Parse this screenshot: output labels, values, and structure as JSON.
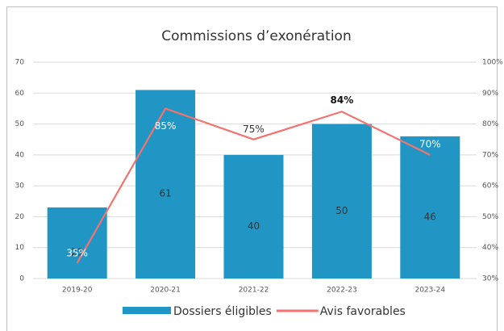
{
  "chart_data": {
    "type": "combo",
    "title": "Commissions d’exonération",
    "categories": [
      "2019-20",
      "2020-21",
      "2021-22",
      "2022-23",
      "2023-24"
    ],
    "series": [
      {
        "name": "Dossiers éligibles",
        "type": "bar",
        "color": "#2196c4",
        "values": [
          23,
          61,
          40,
          50,
          46
        ]
      },
      {
        "name": "Avis favorables",
        "type": "line",
        "axis": "y2",
        "color": "#f4736f",
        "values": [
          35,
          85,
          75,
          84,
          70
        ],
        "value_labels": [
          "35%",
          "85%",
          "75%",
          "84%",
          "70%"
        ]
      }
    ],
    "ylim": [
      0,
      70
    ],
    "yticks": [
      0,
      10,
      20,
      30,
      40,
      50,
      60,
      70
    ],
    "y2lim": [
      30,
      100
    ],
    "y2ticks": [
      {
        "value": 30,
        "label": "30%"
      },
      {
        "value": 40,
        "label": "40%"
      },
      {
        "value": 50,
        "label": "50%"
      },
      {
        "value": 60,
        "label": "60%"
      },
      {
        "value": 70,
        "label": "70%"
      },
      {
        "value": 80,
        "label": "80%"
      },
      {
        "value": 90,
        "label": "90%"
      },
      {
        "value": 100,
        "label": "100%"
      }
    ],
    "grid": true,
    "legend": "bottom"
  }
}
